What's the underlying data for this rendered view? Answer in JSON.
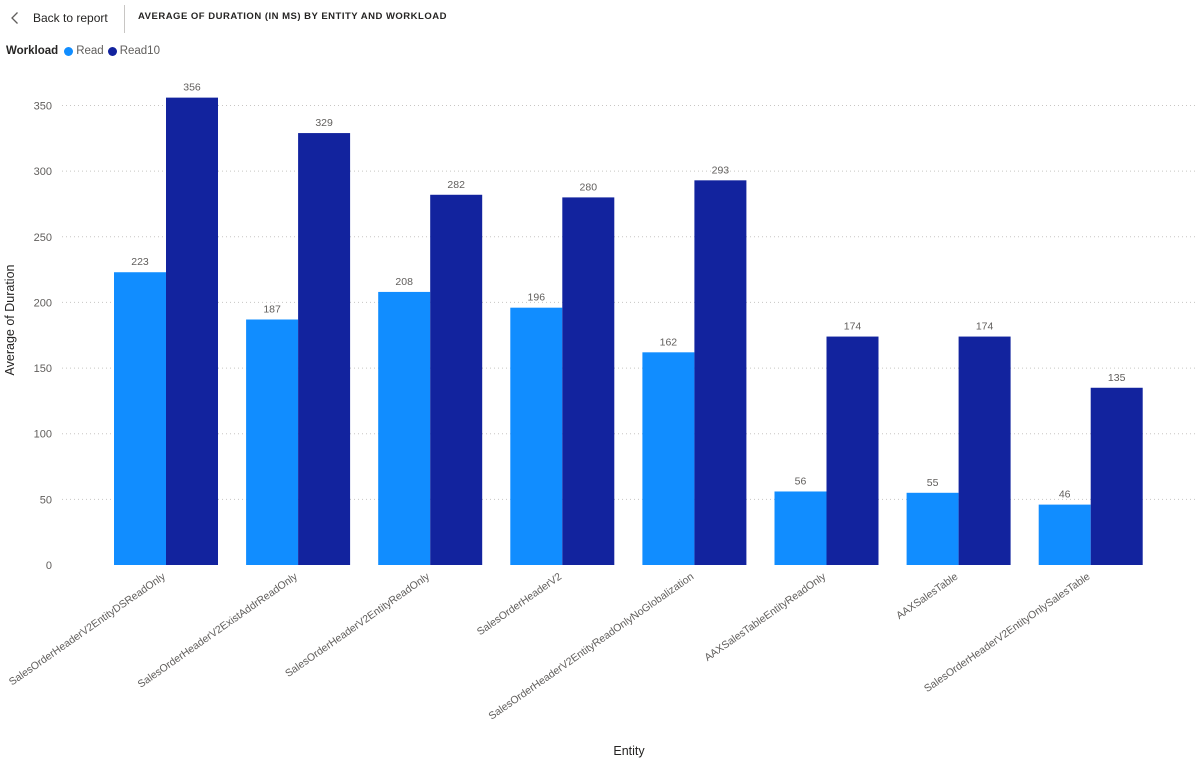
{
  "nav": {
    "back_label": "Back to report",
    "back_icon": "chevron-left-icon"
  },
  "title": "AVERAGE OF DURATION (IN MS) BY ENTITY AND WORKLOAD",
  "legend": {
    "title": "Workload"
  },
  "colors": {
    "Read": "#118dff",
    "Read10": "#12239e"
  },
  "chart_data": {
    "type": "bar",
    "title": "AVERAGE OF DURATION (IN MS) BY ENTITY AND WORKLOAD",
    "xlabel": "Entity",
    "ylabel": "Average of Duration",
    "ylim": [
      0,
      356
    ],
    "yticks": [
      0,
      50,
      100,
      150,
      200,
      250,
      300,
      350
    ],
    "grid": true,
    "legend_position": "top-left",
    "categories": [
      "SalesOrderHeaderV2EntityDSReadOnly",
      "SalesOrderHeaderV2ExistAddrReadOnly",
      "SalesOrderHeaderV2EntityReadOnly",
      "SalesOrderHeaderV2",
      "SalesOrderHeaderV2EntityReadOnlyNoGlobalization",
      "AAXSalesTableEntityReadOnly",
      "AAXSalesTable",
      "SalesOrderHeaderV2EntityOnlySalesTable"
    ],
    "series": [
      {
        "name": "Read",
        "values": [
          223,
          187,
          208,
          196,
          162,
          56,
          55,
          46
        ]
      },
      {
        "name": "Read10",
        "values": [
          356,
          329,
          282,
          280,
          293,
          174,
          174,
          135
        ]
      }
    ]
  }
}
